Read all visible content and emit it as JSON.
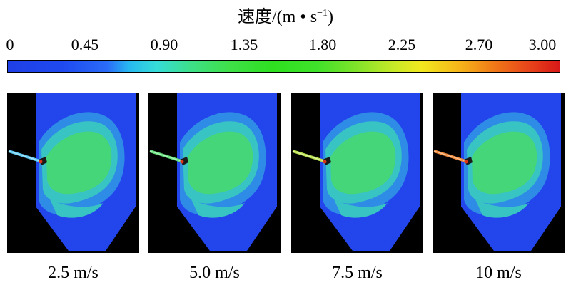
{
  "colorbar": {
    "title_main": "速度/(m • s",
    "title_exp": "−1",
    "title_close": ")",
    "ticks": [
      "0",
      "0.45",
      "0.90",
      "1.35",
      "1.80",
      "2.25",
      "2.70",
      "3.00"
    ]
  },
  "panels": [
    {
      "caption": "2.5 m/s",
      "nozzle_color": "#5ac8f0"
    },
    {
      "caption": "5.0 m/s",
      "nozzle_color": "#63e07a"
    },
    {
      "caption": "7.5 m/s",
      "nozzle_color": "#b8e24a"
    },
    {
      "caption": "10 m/s",
      "nozzle_color": "#f08a3a"
    }
  ],
  "colors": {
    "background_field": "#2346ec",
    "low_ring": "#2f8ce6",
    "mid_ring": "#38c4c2",
    "core": "#46d67a",
    "hot_spot": "#e0341a"
  }
}
